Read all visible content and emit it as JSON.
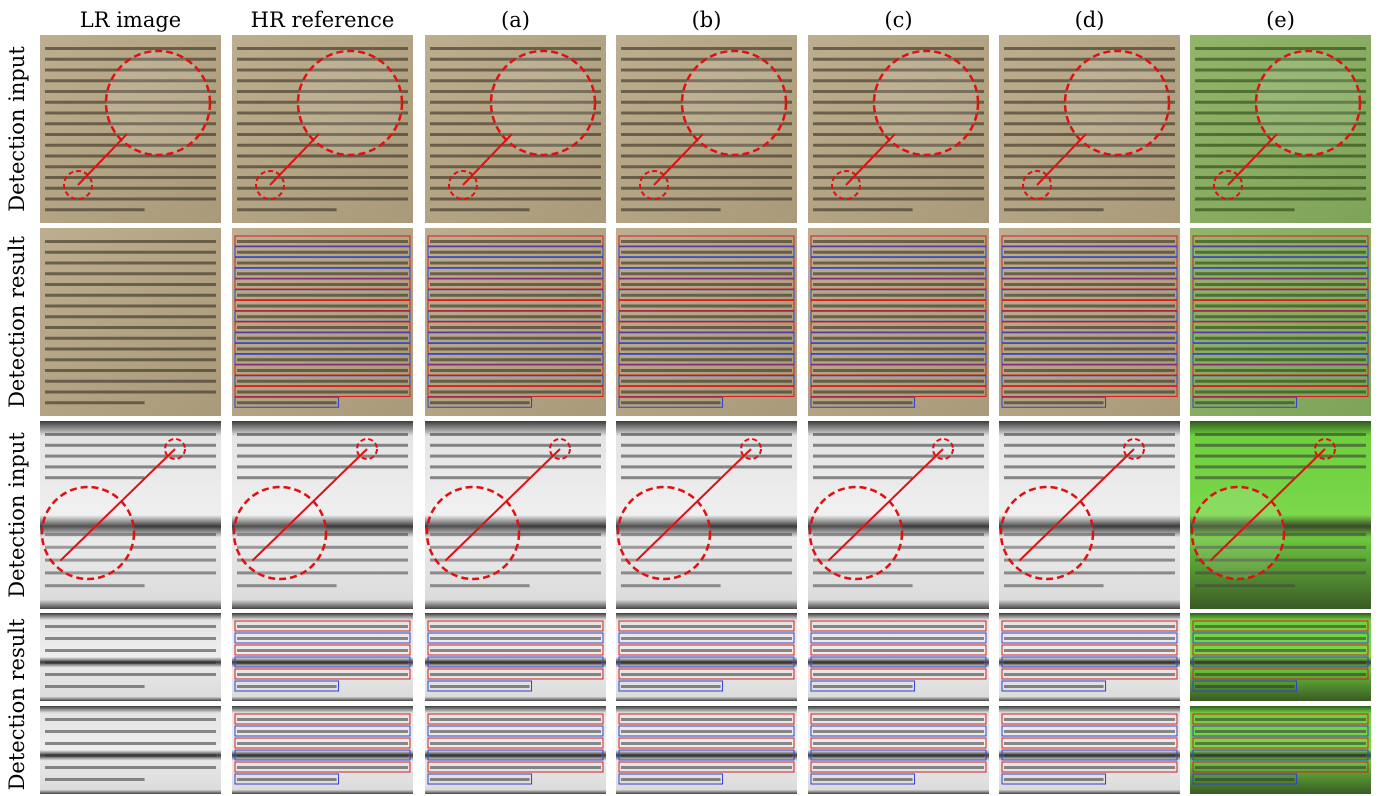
{
  "columns": [
    "LR image",
    "HR reference",
    "(a)",
    "(b)",
    "(c)",
    "(d)",
    "(e)"
  ],
  "rows": [
    "Detection input",
    "Detection result",
    "Detection input",
    "Detection result"
  ]
}
